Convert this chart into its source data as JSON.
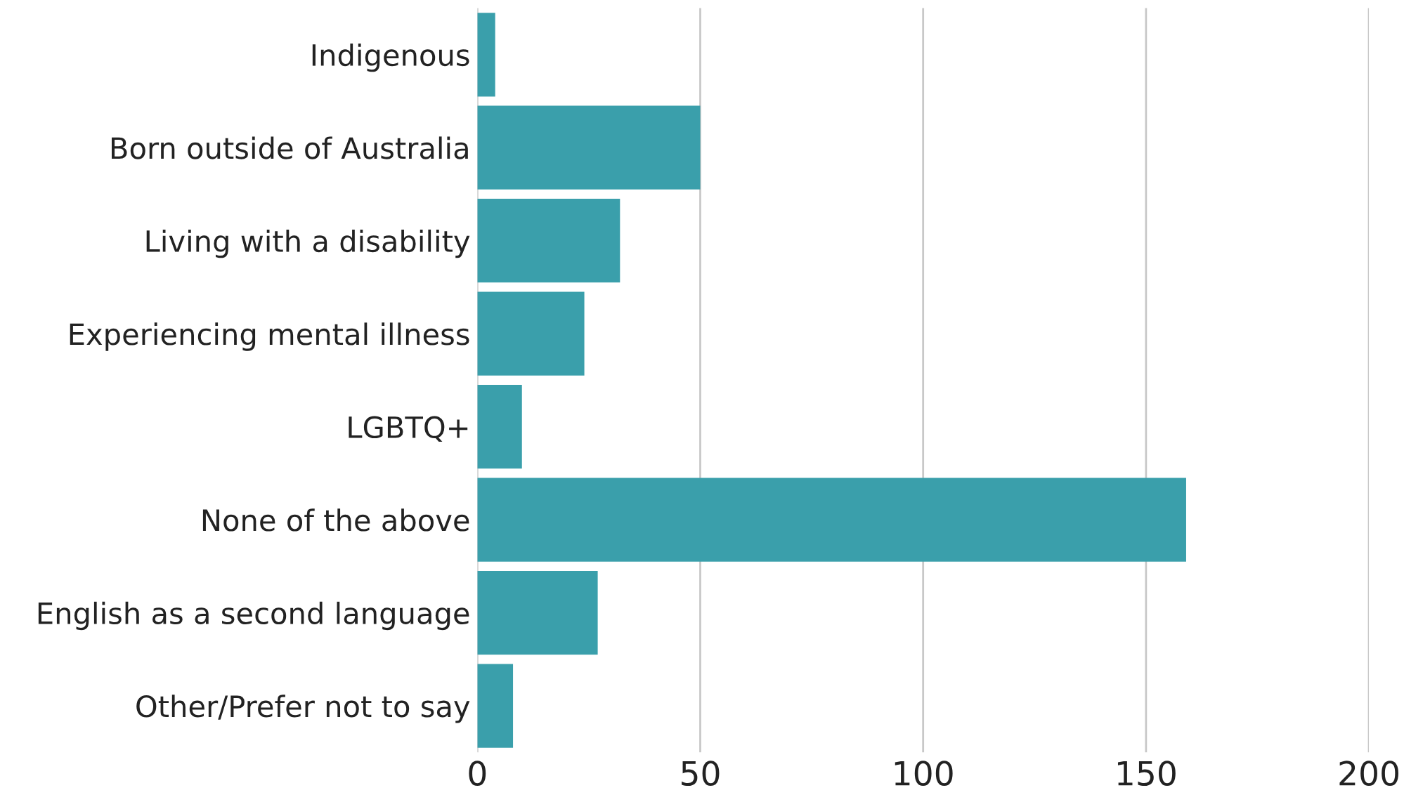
{
  "chart_data": {
    "type": "bar",
    "orientation": "horizontal",
    "categories": [
      "Indigenous",
      "Born outside of Australia",
      "Living with a disability",
      "Experiencing mental illness",
      "LGBTQ+",
      "None of the above",
      "English as a second language",
      "Other/Prefer not to say"
    ],
    "values": [
      4,
      50,
      32,
      24,
      10,
      159,
      27,
      8
    ],
    "color": "#3a9fab",
    "xlim": [
      0,
      200
    ],
    "xticks": [
      0,
      50,
      100,
      150,
      200
    ],
    "grid": "x"
  }
}
